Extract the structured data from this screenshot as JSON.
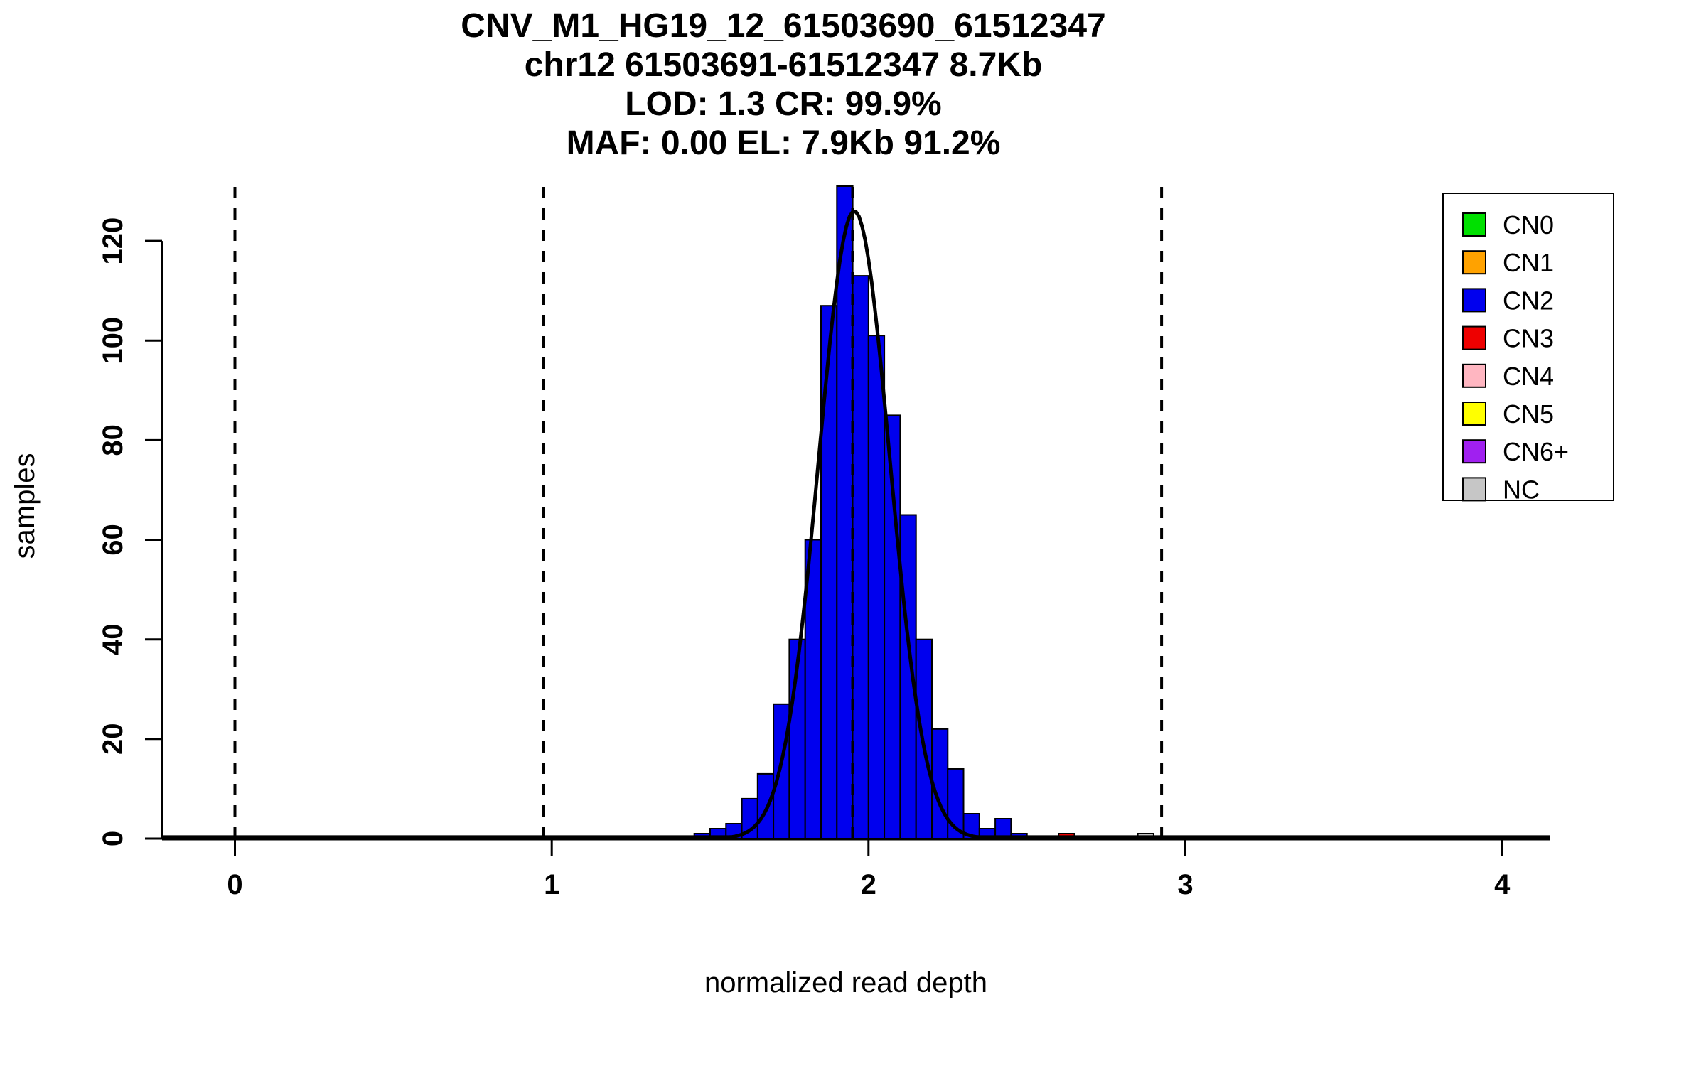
{
  "title": {
    "line1": "CNV_M1_HG19_12_61503690_61512347",
    "line2": "chr12 61503691-61512347 8.7Kb",
    "line3": "LOD: 1.3 CR: 99.9%",
    "line4": "MAF: 0.00 EL: 7.9Kb 91.2%"
  },
  "chart_data": {
    "type": "bar",
    "subtype": "histogram_with_density_curve",
    "title": "CNV_M1_HG19_12_61503690_61512347 / chr12 61503691-61512347 8.7Kb / LOD: 1.3 CR: 99.9% / MAF: 0.00 EL: 7.9Kb 91.2%",
    "xlabel": "normalized read depth",
    "ylabel": "samples",
    "xlim": [
      -0.23,
      4.15
    ],
    "ylim": [
      0,
      132
    ],
    "x_ticks": [
      0,
      1,
      2,
      3,
      4
    ],
    "y_ticks": [
      0,
      20,
      40,
      60,
      80,
      100,
      120
    ],
    "grid": false,
    "bin_width": 0.05,
    "bars": [
      {
        "x": 1.45,
        "count": 1
      },
      {
        "x": 1.5,
        "count": 2
      },
      {
        "x": 1.55,
        "count": 3
      },
      {
        "x": 1.6,
        "count": 8
      },
      {
        "x": 1.65,
        "count": 13
      },
      {
        "x": 1.7,
        "count": 27
      },
      {
        "x": 1.75,
        "count": 40
      },
      {
        "x": 1.8,
        "count": 60
      },
      {
        "x": 1.85,
        "count": 107
      },
      {
        "x": 1.9,
        "count": 131
      },
      {
        "x": 1.95,
        "count": 113
      },
      {
        "x": 2.0,
        "count": 101
      },
      {
        "x": 2.05,
        "count": 85
      },
      {
        "x": 2.1,
        "count": 65
      },
      {
        "x": 2.15,
        "count": 40
      },
      {
        "x": 2.2,
        "count": 22
      },
      {
        "x": 2.25,
        "count": 14
      },
      {
        "x": 2.3,
        "count": 5
      },
      {
        "x": 2.35,
        "count": 2
      },
      {
        "x": 2.4,
        "count": 4
      },
      {
        "x": 2.45,
        "count": 1
      },
      {
        "x": 2.6,
        "count": 1,
        "cn": "CN3"
      },
      {
        "x": 2.85,
        "count": 1,
        "cn": "NC"
      }
    ],
    "density_curve": {
      "mean": 1.955,
      "sd": 0.112,
      "peak": 126,
      "tail_floor": 0.3
    },
    "dashed_lines_x": [
      0,
      0.975,
      1.95,
      2.925
    ],
    "colors": {
      "default_bar_fill": "#0000EE",
      "bar_stroke": "#000000",
      "curve": "#000000",
      "dashed_line": "#000000"
    },
    "legend": {
      "position": "top-right",
      "entries": [
        {
          "label": "CN0",
          "color": "#00E000"
        },
        {
          "label": "CN1",
          "color": "#FFA200"
        },
        {
          "label": "CN2",
          "color": "#0000EE"
        },
        {
          "label": "CN3",
          "color": "#EE0000"
        },
        {
          "label": "CN4",
          "color": "#FFB6C1"
        },
        {
          "label": "CN5",
          "color": "#FFFF00"
        },
        {
          "label": "CN6+",
          "color": "#A020F0"
        },
        {
          "label": "NC",
          "color": "#C6C6C6"
        }
      ]
    }
  }
}
